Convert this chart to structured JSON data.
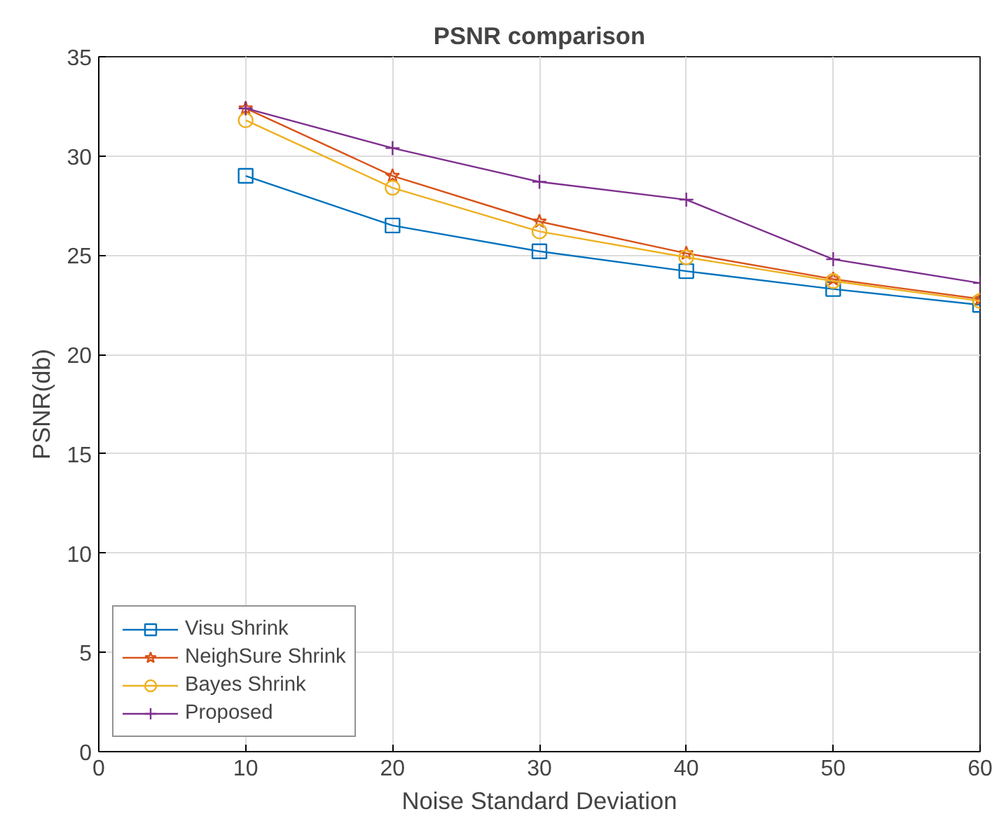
{
  "chart_data": {
    "type": "line",
    "title": "PSNR comparison",
    "xlabel": "Noise Standard Deviation",
    "ylabel": "PSNR(db)",
    "x": [
      10,
      20,
      30,
      40,
      50,
      60
    ],
    "series": [
      {
        "name": "Visu Shrink",
        "color": "#0072bd",
        "marker": "square",
        "values": [
          29.0,
          26.5,
          25.2,
          24.2,
          23.3,
          22.5
        ]
      },
      {
        "name": "NeighSure Shrink",
        "color": "#d95319",
        "marker": "star",
        "values": [
          32.4,
          29.0,
          26.7,
          25.1,
          23.8,
          22.8
        ]
      },
      {
        "name": "Bayes Shrink",
        "color": "#edb120",
        "marker": "circle",
        "values": [
          31.8,
          28.4,
          26.2,
          24.9,
          23.7,
          22.7
        ]
      },
      {
        "name": "Proposed",
        "color": "#7e2f8e",
        "marker": "cross",
        "values": [
          32.4,
          30.4,
          28.7,
          27.8,
          24.8,
          23.6
        ]
      }
    ],
    "xlim": [
      0,
      60
    ],
    "ylim": [
      0,
      35
    ],
    "xticks": [
      0,
      10,
      20,
      30,
      40,
      50,
      60
    ],
    "yticks": [
      0,
      5,
      10,
      15,
      20,
      25,
      30,
      35
    ],
    "grid": true,
    "legend": "bottom left",
    "line_style": "solid"
  }
}
